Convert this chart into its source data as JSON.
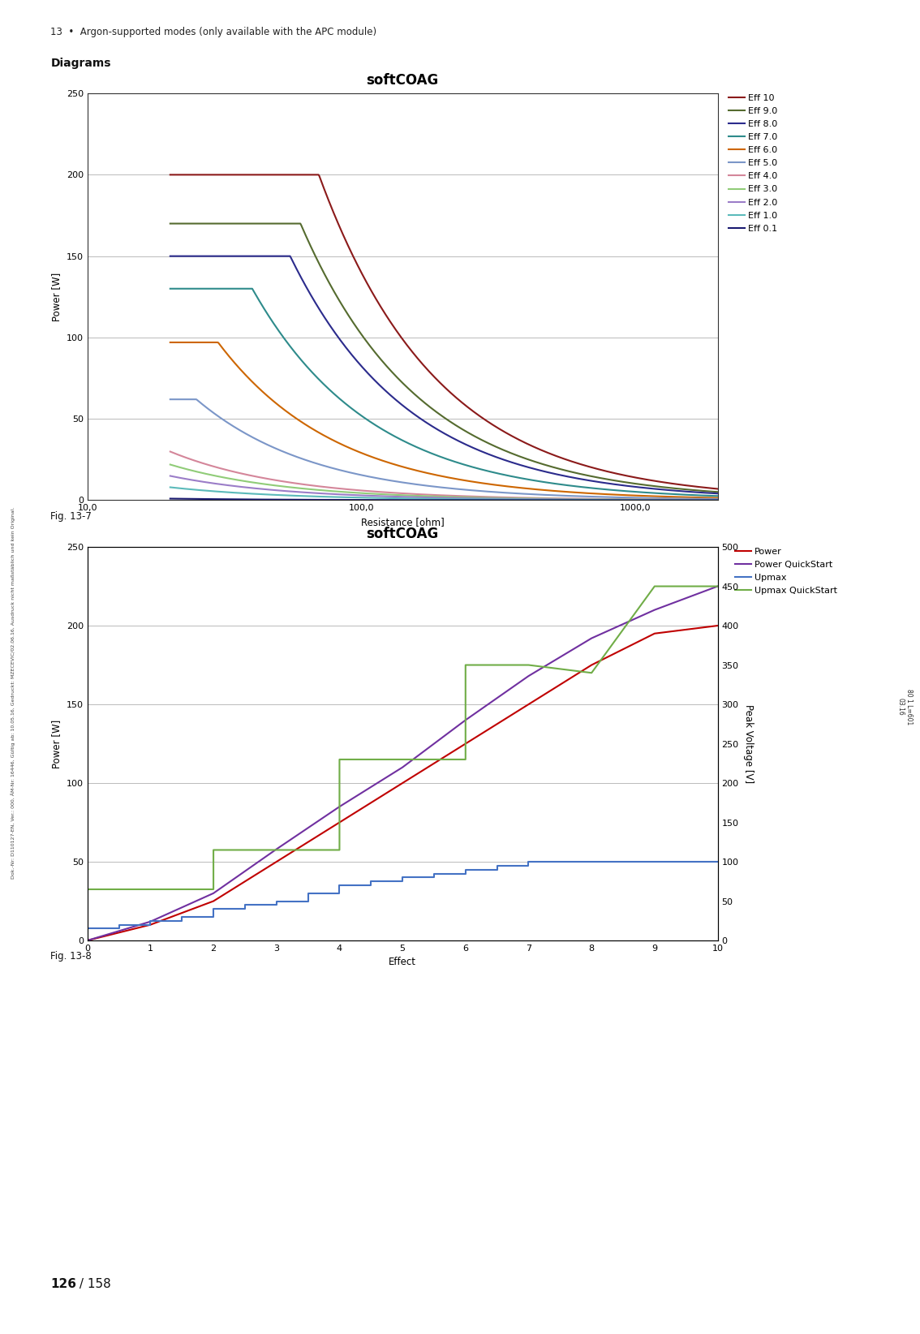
{
  "page_title": "13  •  Argon-supported modes (only available with the APC module)",
  "diagrams_label": "Diagrams",
  "fig1_label": "Fig. 13-7",
  "fig2_label": "Fig. 13-8",
  "footer_bold": "126",
  "footer_rest": " / 158",
  "chart1": {
    "title": "softCOAG",
    "xlabel": "Resistance [ohm]",
    "ylabel": "Power [W]",
    "xlim": [
      10.0,
      2000.0
    ],
    "ylim": [
      0,
      250
    ],
    "yticks": [
      0,
      50,
      100,
      150,
      200,
      250
    ],
    "xtick_labels": [
      "10,0",
      "100,0",
      "1000,0"
    ],
    "xtick_vals": [
      10.0,
      100.0,
      1000.0
    ],
    "series": [
      {
        "label": "Eff 10",
        "color": "#8B1A1A",
        "max_power": 200,
        "r_start": 20,
        "r_flat_end": 70,
        "v_max": 200
      },
      {
        "label": "Eff 9.0",
        "color": "#556B2F",
        "max_power": 170,
        "r_start": 20,
        "r_flat_end": 60,
        "v_max": 170
      },
      {
        "label": "Eff 8.0",
        "color": "#2B2B8C",
        "max_power": 150,
        "r_start": 20,
        "r_flat_end": 55,
        "v_max": 150
      },
      {
        "label": "Eff 7.0",
        "color": "#2E8B8B",
        "max_power": 130,
        "r_start": 20,
        "r_flat_end": 40,
        "v_max": 130
      },
      {
        "label": "Eff 6.0",
        "color": "#CD6600",
        "max_power": 97,
        "r_start": 20,
        "r_flat_end": 30,
        "v_max": 97
      },
      {
        "label": "Eff 5.0",
        "color": "#7B96C8",
        "max_power": 62,
        "r_start": 20,
        "r_flat_end": 25,
        "v_max": 62
      },
      {
        "label": "Eff 4.0",
        "color": "#D4869A",
        "max_power": 30,
        "r_start": 20,
        "r_flat_end": 20,
        "v_max": 30
      },
      {
        "label": "Eff 3.0",
        "color": "#90CC78",
        "max_power": 22,
        "r_start": 20,
        "r_flat_end": 20,
        "v_max": 22
      },
      {
        "label": "Eff 2.0",
        "color": "#9B7DC8",
        "max_power": 15,
        "r_start": 20,
        "r_flat_end": 20,
        "v_max": 15
      },
      {
        "label": "Eff 1.0",
        "color": "#5BBABA",
        "max_power": 8,
        "r_start": 20,
        "r_flat_end": 20,
        "v_max": 8
      },
      {
        "label": "Eff 0.1",
        "color": "#191970",
        "max_power": 1,
        "r_start": 20,
        "r_flat_end": 20,
        "v_max": 1
      }
    ]
  },
  "chart2": {
    "title": "softCOAG",
    "xlabel": "Effect",
    "ylabel_left": "Power [W]",
    "ylabel_right": "Peak Voltage [V]",
    "xlim": [
      0,
      10
    ],
    "ylim_left": [
      0,
      250
    ],
    "ylim_right": [
      0,
      500
    ],
    "yticks_left": [
      0,
      50,
      100,
      150,
      200,
      250
    ],
    "yticks_right": [
      0,
      50,
      100,
      150,
      200,
      250,
      300,
      350,
      400,
      450,
      500
    ],
    "xticks": [
      0,
      1,
      2,
      3,
      4,
      5,
      6,
      7,
      8,
      9,
      10
    ],
    "power_x": [
      0,
      1,
      2,
      3,
      4,
      5,
      6,
      7,
      8,
      9,
      10
    ],
    "power_y": [
      0,
      10,
      25,
      50,
      75,
      100,
      125,
      150,
      175,
      195,
      200
    ],
    "power_qs_x": [
      0,
      1,
      2,
      3,
      4,
      5,
      6,
      7,
      8,
      9,
      10
    ],
    "power_qs_y": [
      0,
      12,
      30,
      58,
      85,
      110,
      140,
      168,
      192,
      210,
      225
    ],
    "upmax_x": [
      0,
      0.5,
      0.5,
      1,
      1,
      1.5,
      1.5,
      2,
      2,
      2.5,
      2.5,
      3,
      3,
      3.5,
      3.5,
      4,
      4,
      4.5,
      4.5,
      5,
      5,
      5.5,
      5.5,
      6,
      6,
      6.5,
      6.5,
      7,
      7,
      7.5,
      7.5,
      8,
      8,
      8.5,
      8.5,
      9,
      9,
      9.5,
      9.5,
      10
    ],
    "upmax_y": [
      15,
      15,
      20,
      20,
      25,
      25,
      30,
      30,
      40,
      40,
      45,
      45,
      50,
      50,
      60,
      60,
      70,
      70,
      75,
      75,
      80,
      80,
      85,
      85,
      90,
      90,
      95,
      95,
      100,
      100,
      100,
      100,
      100,
      100,
      100,
      100,
      100,
      100,
      100,
      100
    ],
    "upmax_qs_x": [
      0,
      1,
      1,
      2,
      2,
      3,
      3,
      4,
      4,
      5,
      5,
      6,
      6,
      7,
      7,
      8,
      8,
      9,
      9,
      10
    ],
    "upmax_qs_y": [
      65,
      65,
      65,
      65,
      115,
      115,
      115,
      115,
      230,
      230,
      230,
      230,
      350,
      350,
      350,
      340,
      340,
      450,
      450,
      450
    ],
    "series_colors": {
      "Power": "#C00000",
      "Power QuickStart": "#7030A0",
      "Upmax": "#4472C4",
      "Upmax QuickStart": "#70AD47"
    }
  },
  "sidebar_text": "80 1 L=601\n03.16",
  "doc_footer": "Dok.-Nr: D110127-EN, Ver.: 000, ÄM-Nr: 16446, Gültig ab: 10.05.16, Gedruckt: MZECEVIC/02.06.16, Ausdruck nicht maßstäblich und kein Original."
}
